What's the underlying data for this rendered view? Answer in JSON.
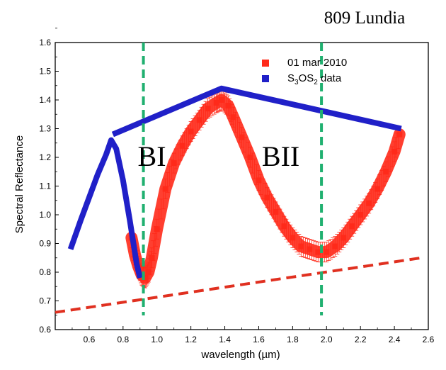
{
  "chart_data": {
    "type": "scatter",
    "title": "809 Lundia",
    "xlabel": "wavelength (µm)",
    "ylabel": "Spectral Reflectance",
    "xlim": [
      0.4,
      2.6
    ],
    "ylim": [
      0.6,
      1.6
    ],
    "x_ticks": [
      "0.6",
      "0.8",
      "1.0",
      "1.2",
      "1.4",
      "1.6",
      "1.8",
      "2.0",
      "2.2",
      "2.4",
      "2.6"
    ],
    "y_ticks": [
      "0.6",
      "0.7",
      "0.8",
      "0.9",
      "1.0",
      "1.1",
      "1.2",
      "1.3",
      "1.4",
      "1.5",
      "1.6"
    ],
    "legend": {
      "placement": "top-right",
      "entries": [
        {
          "label": "01 mar 2010",
          "color": "#ff2a1a"
        },
        {
          "label_parts": [
            "S",
            "3",
            "OS",
            "2",
            " data"
          ],
          "color": "#2020c8"
        }
      ]
    },
    "series": [
      {
        "name": "01 mar 2010",
        "color": "#ff2a1a",
        "marker": "square",
        "error_bars": true,
        "x": [
          0.85,
          0.87,
          0.89,
          0.91,
          0.93,
          0.95,
          0.97,
          1.0,
          1.05,
          1.1,
          1.15,
          1.2,
          1.25,
          1.3,
          1.35,
          1.38,
          1.42,
          1.45,
          1.5,
          1.55,
          1.6,
          1.65,
          1.7,
          1.75,
          1.8,
          1.85,
          1.9,
          1.95,
          2.0,
          2.05,
          2.1,
          2.15,
          2.2,
          2.25,
          2.3,
          2.35,
          2.4,
          2.43
        ],
        "y": [
          0.92,
          0.86,
          0.82,
          0.79,
          0.78,
          0.8,
          0.85,
          0.95,
          1.09,
          1.18,
          1.24,
          1.29,
          1.33,
          1.37,
          1.39,
          1.4,
          1.38,
          1.34,
          1.27,
          1.2,
          1.12,
          1.06,
          1.01,
          0.96,
          0.92,
          0.89,
          0.88,
          0.87,
          0.87,
          0.89,
          0.92,
          0.96,
          1.0,
          1.04,
          1.09,
          1.15,
          1.22,
          1.28
        ]
      },
      {
        "name": "S3OS2 data",
        "color": "#2020c8",
        "x": [
          0.49,
          0.55,
          0.6,
          0.65,
          0.7,
          0.73,
          0.76,
          0.8,
          0.84,
          0.88,
          0.9
        ],
        "y": [
          0.88,
          0.98,
          1.06,
          1.14,
          1.21,
          1.26,
          1.23,
          1.12,
          0.98,
          0.83,
          0.78
        ]
      },
      {
        "name": "continuum",
        "color": "#2020c8",
        "x": [
          0.74,
          1.38,
          2.44
        ],
        "y": [
          1.28,
          1.44,
          1.3
        ]
      },
      {
        "name": "red-dashed-line",
        "color": "#e03020",
        "dash": true,
        "x": [
          0.4,
          2.56
        ],
        "y": [
          0.66,
          0.85
        ]
      }
    ],
    "vertical_lines": [
      {
        "x": 0.92,
        "color": "#20b070"
      },
      {
        "x": 1.97,
        "color": "#20b070"
      }
    ],
    "annotations": [
      {
        "text": "BI",
        "x": 0.97,
        "y": 1.17
      },
      {
        "text": "BII",
        "x": 1.73,
        "y": 1.17
      }
    ]
  }
}
